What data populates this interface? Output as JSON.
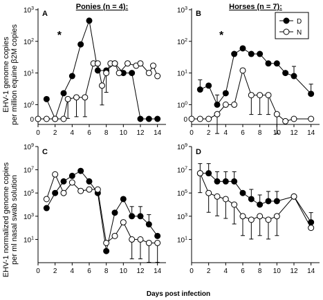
{
  "figure": {
    "xlabel": "Days post infection",
    "ylabel_top": [
      "EHV-1 genome copies",
      "per million equine β2M copies"
    ],
    "ylabel_bottom": [
      "EHV-1 normalized genome copies",
      "per ml nasal swab solution"
    ],
    "legend": [
      "D",
      "N"
    ],
    "colors": {
      "series_D": "#000000",
      "series_N": "#ffffff",
      "axis": "#000000"
    }
  },
  "chart_data": [
    {
      "type": "line",
      "panel": "A",
      "title": "Ponies (n = 4):",
      "annotation": "*",
      "yscale": "log",
      "ylim": [
        0,
        1000
      ],
      "yticks": [
        "0",
        "10^0",
        "10^1",
        "10^2",
        "10^3"
      ],
      "xlim": [
        0,
        15
      ],
      "xticks": [
        0,
        2,
        4,
        6,
        8,
        10,
        12,
        14
      ],
      "series": [
        {
          "name": "D",
          "points": [
            [
              1,
              1.5
            ],
            [
              2,
              0
            ],
            [
              3,
              2.3
            ],
            [
              4,
              8
            ],
            [
              5,
              80
            ],
            [
              6,
              450
            ],
            [
              7,
              12
            ],
            [
              8,
              12
            ],
            [
              9,
              20
            ],
            [
              10,
              10
            ],
            [
              11,
              10
            ],
            [
              12,
              0
            ],
            [
              13,
              0
            ],
            [
              14,
              0
            ]
          ]
        },
        {
          "name": "N",
          "points": [
            [
              0,
              0
            ],
            [
              1,
              0
            ],
            [
              2,
              0
            ],
            [
              3,
              0
            ],
            [
              3.5,
              1.5
            ],
            [
              4.5,
              1.7
            ],
            [
              5.5,
              1.7
            ],
            [
              6.5,
              20
            ],
            [
              7,
              20
            ],
            [
              7.5,
              4
            ],
            [
              8,
              10
            ],
            [
              8.5,
              20
            ],
            [
              9,
              20
            ],
            [
              9.5,
              10
            ],
            [
              10.5,
              20
            ],
            [
              11.5,
              17
            ],
            [
              12,
              20
            ],
            [
              13,
              10
            ],
            [
              13.5,
              17
            ],
            [
              14,
              8
            ]
          ],
          "errors": [
            [
              3.5,
              1.5
            ],
            [
              4.5,
              1.7
            ],
            [
              5.5,
              1.7
            ],
            [
              7.5,
              4
            ],
            [
              8,
              10
            ]
          ]
        }
      ]
    },
    {
      "type": "line",
      "panel": "B",
      "title": "Horses (n = 7):",
      "annotation": "*",
      "yscale": "log",
      "ylim": [
        0,
        1000
      ],
      "yticks": [
        "0",
        "10^0",
        "10^1",
        "10^2",
        "10^3"
      ],
      "xlim": [
        0,
        15
      ],
      "xticks": [
        0,
        2,
        4,
        6,
        8,
        10,
        12,
        14
      ],
      "series": [
        {
          "name": "D",
          "points": [
            [
              1,
              3
            ],
            [
              2,
              4
            ],
            [
              3,
              1
            ],
            [
              4,
              2.3
            ],
            [
              5,
              40
            ],
            [
              6,
              60
            ],
            [
              7,
              40
            ],
            [
              8,
              40
            ],
            [
              9,
              20
            ],
            [
              10,
              20
            ],
            [
              11,
              10
            ],
            [
              12,
              8
            ],
            [
              14,
              2.2
            ]
          ],
          "errors": [
            [
              1,
              3
            ],
            [
              3,
              1
            ],
            [
              12,
              8
            ],
            [
              14,
              2.2
            ]
          ]
        },
        {
          "name": "N",
          "points": [
            [
              0,
              0
            ],
            [
              1,
              0
            ],
            [
              2,
              0
            ],
            [
              3,
              0.5
            ],
            [
              4,
              1
            ],
            [
              5,
              1
            ],
            [
              6,
              12
            ],
            [
              7,
              2
            ],
            [
              8,
              2
            ],
            [
              9,
              2
            ],
            [
              10,
              0.5
            ],
            [
              11,
              0.3
            ],
            [
              12,
              0
            ],
            [
              14,
              0
            ]
          ],
          "errors": [
            [
              3,
              0.5
            ],
            [
              7,
              2
            ],
            [
              8,
              2
            ],
            [
              9,
              2
            ],
            [
              10,
              0.5
            ]
          ]
        }
      ]
    },
    {
      "type": "line",
      "panel": "C",
      "yscale": "log",
      "ylim": [
        0.1,
        1000000000
      ],
      "yticks": [
        "10^1",
        "10^3",
        "10^5",
        "10^7",
        "10^9"
      ],
      "xlim": [
        0,
        15
      ],
      "xticks": [
        0,
        2,
        4,
        6,
        8,
        10,
        12,
        14
      ],
      "series": [
        {
          "name": "D",
          "points": [
            [
              1,
              5000
            ],
            [
              2,
              100000
            ],
            [
              3,
              1000000
            ],
            [
              4,
              3000000
            ],
            [
              5,
              8000000
            ],
            [
              6,
              1000000
            ],
            [
              7,
              100000
            ],
            [
              8,
              1
            ],
            [
              9,
              2000
            ],
            [
              10,
              30000
            ],
            [
              11,
              1000
            ],
            [
              12,
              1000
            ],
            [
              13,
              200
            ],
            [
              14,
              20
            ]
          ],
          "errors": [
            [
              11,
              1000
            ],
            [
              12,
              1000
            ],
            [
              13,
              200
            ]
          ]
        },
        {
          "name": "N",
          "points": [
            [
              1,
              30000
            ],
            [
              2,
              4000000
            ],
            [
              3,
              100000
            ],
            [
              4,
              800000
            ],
            [
              5,
              150000
            ],
            [
              6,
              200000
            ],
            [
              7,
              200000
            ],
            [
              8,
              5
            ],
            [
              9,
              20
            ],
            [
              10,
              300
            ],
            [
              11,
              10
            ],
            [
              12,
              10
            ],
            [
              13,
              5
            ],
            [
              14,
              5
            ]
          ],
          "errors": [
            [
              11,
              10
            ],
            [
              12,
              10
            ],
            [
              13,
              5
            ],
            [
              14,
              5
            ]
          ]
        }
      ]
    },
    {
      "type": "line",
      "panel": "D",
      "yscale": "log",
      "ylim": [
        0.1,
        1000000000
      ],
      "yticks": [
        "10^1",
        "10^3",
        "10^5",
        "10^7",
        "10^9"
      ],
      "xlim": [
        0,
        15
      ],
      "xticks": [
        0,
        2,
        4,
        6,
        8,
        10,
        12,
        14
      ],
      "series": [
        {
          "name": "D",
          "points": [
            [
              1,
              5000000
            ],
            [
              2,
              5000000
            ],
            [
              3,
              1000000
            ],
            [
              4,
              1000000
            ],
            [
              5,
              1000000
            ],
            [
              6,
              100000
            ],
            [
              7,
              30000
            ],
            [
              8,
              10000
            ],
            [
              9,
              20000
            ],
            [
              10,
              20000
            ],
            [
              12,
              50000
            ],
            [
              14,
              300
            ]
          ],
          "errors": [
            [
              1,
              5000000
            ],
            [
              2,
              5000000
            ],
            [
              3,
              1000000
            ],
            [
              4,
              1000000
            ],
            [
              5,
              1000000
            ],
            [
              7,
              30000
            ],
            [
              8,
              10000
            ],
            [
              9,
              20000
            ],
            [
              10,
              20000
            ],
            [
              14,
              300
            ]
          ]
        },
        {
          "name": "N",
          "points": [
            [
              1,
              5000000
            ],
            [
              2,
              100000
            ],
            [
              3,
              50000
            ],
            [
              4,
              30000
            ],
            [
              5,
              10000
            ],
            [
              6,
              1000
            ],
            [
              7,
              500
            ],
            [
              8,
              1000
            ],
            [
              9,
              500
            ],
            [
              10,
              1000
            ],
            [
              12,
              50000
            ],
            [
              14,
              100
            ]
          ],
          "errors": [
            [
              1,
              5000000
            ],
            [
              2,
              100000
            ],
            [
              3,
              50000
            ],
            [
              4,
              30000
            ],
            [
              5,
              10000
            ],
            [
              6,
              1000
            ],
            [
              7,
              500
            ],
            [
              8,
              1000
            ],
            [
              9,
              500
            ],
            [
              10,
              1000
            ]
          ]
        }
      ]
    }
  ]
}
